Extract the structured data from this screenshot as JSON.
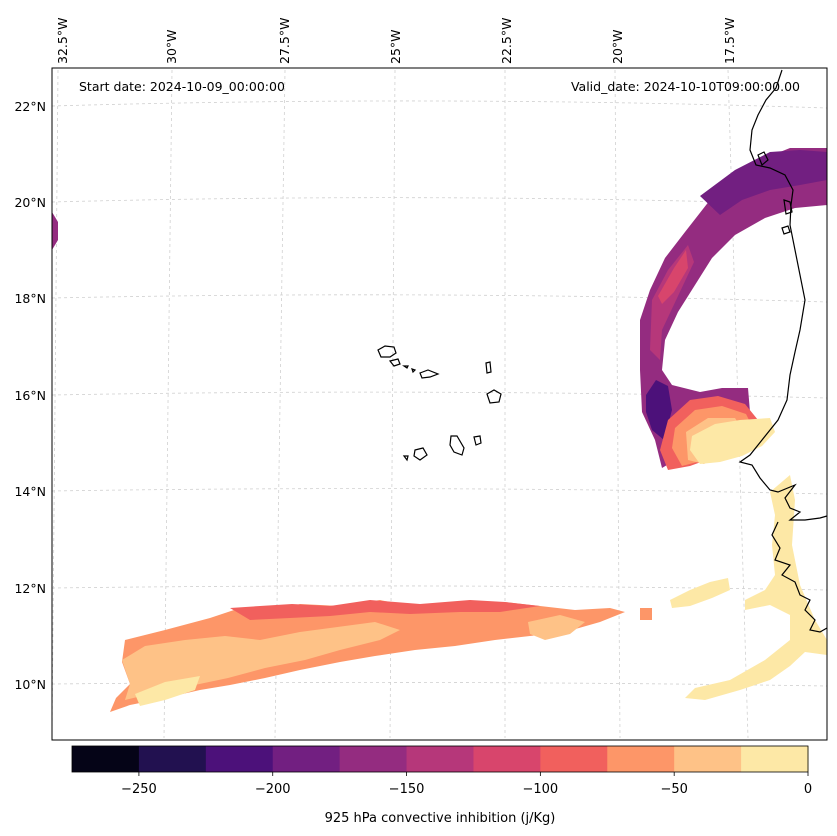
{
  "map": {
    "start_label": "Start date: 2024-10-09_00:00:00",
    "valid_label": "Valid_date: 2024-10-10T09:00:00.00",
    "lon_labels": [
      "32.5°W",
      "30°W",
      "27.5°W",
      "25°W",
      "22.5°W",
      "20°W",
      "17.5°W"
    ],
    "lat_labels": [
      "22°N",
      "20°N",
      "18°N",
      "16°N",
      "14°N",
      "12°N",
      "10°N"
    ]
  },
  "colorbar": {
    "label": "925 hPa convective inhibition (j/Kg)",
    "tick_labels": [
      "−250",
      "−200",
      "−150",
      "−100",
      "−50",
      "0"
    ],
    "range": [
      -275,
      0
    ],
    "levels": [
      -275,
      -250,
      -225,
      -200,
      -175,
      -150,
      -125,
      -100,
      -75,
      -50,
      -25,
      0
    ],
    "colors": [
      "#050417",
      "#221150",
      "#4c117a",
      "#721f81",
      "#942c80",
      "#b6377a",
      "#d8456c",
      "#f1605d",
      "#fd9668",
      "#fec287",
      "#fde8a6"
    ]
  }
}
